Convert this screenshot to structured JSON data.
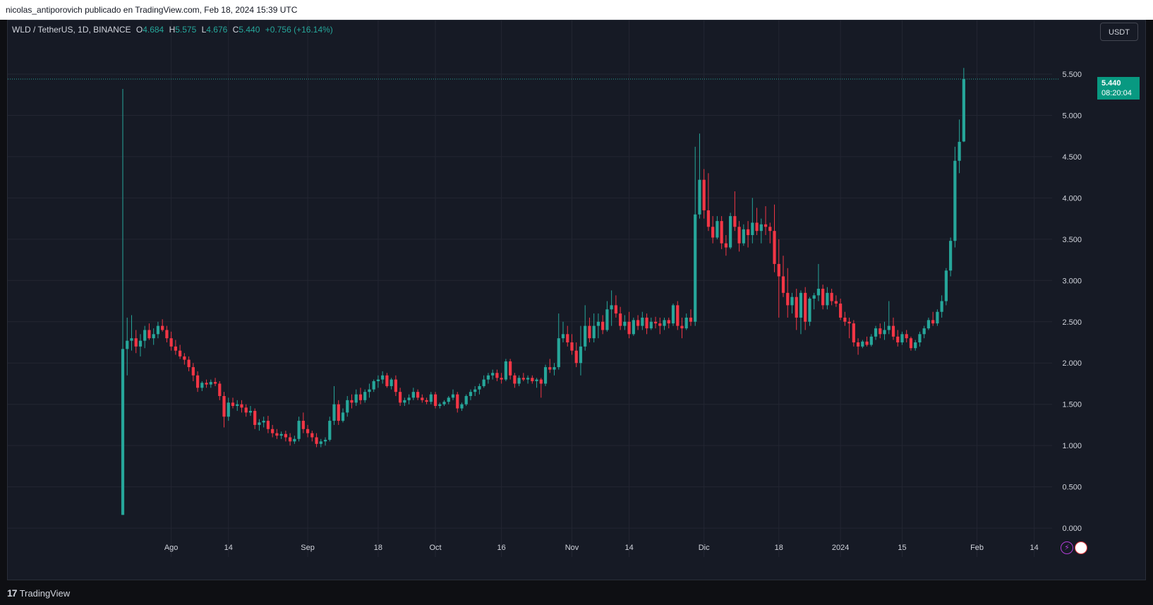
{
  "header": {
    "attribution": "nicolas_antiporovich publicado en TradingView.com, Feb 18, 2024 15:39 UTC"
  },
  "legend": {
    "symbol": "WLD / TetherUS, 1D, BINANCE",
    "o_label": "O",
    "o": "4.684",
    "h_label": "H",
    "h": "5.575",
    "l_label": "L",
    "l": "4.676",
    "c_label": "C",
    "c": "5.440",
    "change": "+0.756 (+16.14%)"
  },
  "currency_button": "USDT",
  "price_tag": {
    "price": "5.440",
    "countdown": "08:20:04"
  },
  "footer": {
    "brand": "TradingView",
    "logo": "17"
  },
  "colors": {
    "up": "#26a69a",
    "down": "#f23645",
    "background": "#161a25",
    "grid": "#232632",
    "text": "#d1d4dc"
  },
  "chart_data": {
    "type": "candlestick",
    "y_ticks": [
      "0.000",
      "0.500",
      "1.000",
      "1.500",
      "2.000",
      "2.500",
      "3.000",
      "3.500",
      "4.000",
      "4.500",
      "5.000",
      "5.500"
    ],
    "ylim": [
      -0.35,
      6.15
    ],
    "x_ticks": [
      {
        "label": "Ago",
        "day": 11
      },
      {
        "label": "14",
        "day": 24
      },
      {
        "label": "Sep",
        "day": 42
      },
      {
        "label": "18",
        "day": 58
      },
      {
        "label": "Oct",
        "day": 71
      },
      {
        "label": "16",
        "day": 86
      },
      {
        "label": "Nov",
        "day": 102
      },
      {
        "label": "14",
        "day": 115
      },
      {
        "label": "Dic",
        "day": 132
      },
      {
        "label": "18",
        "day": 149
      },
      {
        "label": "2024",
        "day": 163
      },
      {
        "label": "15",
        "day": 177
      },
      {
        "label": "Feb",
        "day": 194
      },
      {
        "label": "14",
        "day": 207
      }
    ],
    "first_day": "2023-07-24",
    "last_price": 5.44,
    "candles": [
      [
        0.16,
        5.32,
        0.16,
        2.17
      ],
      [
        2.17,
        2.55,
        1.85,
        2.27
      ],
      [
        2.27,
        2.58,
        2.15,
        2.3
      ],
      [
        2.3,
        2.4,
        2.12,
        2.2
      ],
      [
        2.2,
        2.35,
        2.08,
        2.27
      ],
      [
        2.27,
        2.45,
        2.18,
        2.4
      ],
      [
        2.4,
        2.48,
        2.28,
        2.3
      ],
      [
        2.3,
        2.42,
        2.22,
        2.35
      ],
      [
        2.35,
        2.5,
        2.3,
        2.45
      ],
      [
        2.45,
        2.53,
        2.38,
        2.4
      ],
      [
        2.4,
        2.45,
        2.25,
        2.3
      ],
      [
        2.3,
        2.38,
        2.15,
        2.2
      ],
      [
        2.2,
        2.28,
        2.1,
        2.15
      ],
      [
        2.15,
        2.22,
        2.05,
        2.08
      ],
      [
        2.08,
        2.12,
        1.98,
        2.04
      ],
      [
        2.04,
        2.08,
        1.9,
        1.95
      ],
      [
        1.95,
        2.0,
        1.78,
        1.85
      ],
      [
        1.85,
        1.9,
        1.65,
        1.7
      ],
      [
        1.7,
        1.78,
        1.66,
        1.76
      ],
      [
        1.76,
        1.8,
        1.7,
        1.74
      ],
      [
        1.74,
        1.8,
        1.7,
        1.77
      ],
      [
        1.77,
        1.82,
        1.72,
        1.75
      ],
      [
        1.75,
        1.78,
        1.55,
        1.6
      ],
      [
        1.6,
        1.65,
        1.22,
        1.35
      ],
      [
        1.35,
        1.58,
        1.3,
        1.52
      ],
      [
        1.52,
        1.58,
        1.45,
        1.48
      ],
      [
        1.48,
        1.55,
        1.42,
        1.5
      ],
      [
        1.5,
        1.55,
        1.4,
        1.46
      ],
      [
        1.46,
        1.5,
        1.35,
        1.4
      ],
      [
        1.4,
        1.48,
        1.36,
        1.42
      ],
      [
        1.42,
        1.45,
        1.2,
        1.25
      ],
      [
        1.25,
        1.32,
        1.18,
        1.28
      ],
      [
        1.28,
        1.35,
        1.22,
        1.3
      ],
      [
        1.3,
        1.36,
        1.15,
        1.2
      ],
      [
        1.2,
        1.25,
        1.1,
        1.15
      ],
      [
        1.15,
        1.2,
        1.08,
        1.12
      ],
      [
        1.12,
        1.17,
        1.08,
        1.14
      ],
      [
        1.14,
        1.18,
        1.05,
        1.1
      ],
      [
        1.1,
        1.15,
        1.0,
        1.05
      ],
      [
        1.05,
        1.12,
        1.02,
        1.08
      ],
      [
        1.08,
        1.35,
        1.05,
        1.3
      ],
      [
        1.3,
        1.4,
        1.15,
        1.2
      ],
      [
        1.2,
        1.25,
        1.1,
        1.15
      ],
      [
        1.15,
        1.18,
        1.05,
        1.1
      ],
      [
        1.1,
        1.15,
        0.98,
        1.02
      ],
      [
        1.02,
        1.08,
        0.98,
        1.05
      ],
      [
        1.05,
        1.1,
        1.0,
        1.07
      ],
      [
        1.07,
        1.35,
        1.05,
        1.3
      ],
      [
        1.3,
        1.72,
        1.25,
        1.5
      ],
      [
        1.5,
        1.55,
        1.25,
        1.3
      ],
      [
        1.3,
        1.45,
        1.28,
        1.4
      ],
      [
        1.4,
        1.6,
        1.35,
        1.55
      ],
      [
        1.55,
        1.62,
        1.45,
        1.52
      ],
      [
        1.52,
        1.68,
        1.48,
        1.62
      ],
      [
        1.62,
        1.7,
        1.5,
        1.55
      ],
      [
        1.55,
        1.68,
        1.52,
        1.65
      ],
      [
        1.65,
        1.75,
        1.58,
        1.68
      ],
      [
        1.68,
        1.8,
        1.65,
        1.78
      ],
      [
        1.78,
        1.85,
        1.7,
        1.8
      ],
      [
        1.8,
        1.9,
        1.75,
        1.85
      ],
      [
        1.85,
        1.88,
        1.7,
        1.72
      ],
      [
        1.72,
        1.82,
        1.68,
        1.8
      ],
      [
        1.8,
        1.85,
        1.6,
        1.65
      ],
      [
        1.65,
        1.7,
        1.48,
        1.52
      ],
      [
        1.52,
        1.58,
        1.48,
        1.55
      ],
      [
        1.55,
        1.62,
        1.5,
        1.58
      ],
      [
        1.58,
        1.7,
        1.55,
        1.65
      ],
      [
        1.65,
        1.68,
        1.55,
        1.58
      ],
      [
        1.58,
        1.62,
        1.52,
        1.55
      ],
      [
        1.55,
        1.58,
        1.5,
        1.53
      ],
      [
        1.53,
        1.65,
        1.5,
        1.62
      ],
      [
        1.62,
        1.65,
        1.45,
        1.48
      ],
      [
        1.48,
        1.52,
        1.45,
        1.5
      ],
      [
        1.5,
        1.55,
        1.48,
        1.53
      ],
      [
        1.53,
        1.6,
        1.5,
        1.58
      ],
      [
        1.58,
        1.68,
        1.55,
        1.62
      ],
      [
        1.62,
        1.65,
        1.4,
        1.45
      ],
      [
        1.45,
        1.52,
        1.42,
        1.5
      ],
      [
        1.5,
        1.62,
        1.48,
        1.6
      ],
      [
        1.6,
        1.68,
        1.55,
        1.65
      ],
      [
        1.65,
        1.72,
        1.6,
        1.68
      ],
      [
        1.68,
        1.75,
        1.62,
        1.72
      ],
      [
        1.72,
        1.85,
        1.7,
        1.8
      ],
      [
        1.8,
        1.88,
        1.75,
        1.85
      ],
      [
        1.85,
        1.92,
        1.8,
        1.88
      ],
      [
        1.88,
        1.92,
        1.78,
        1.82
      ],
      [
        1.82,
        1.88,
        1.75,
        1.8
      ],
      [
        1.8,
        2.05,
        1.78,
        2.02
      ],
      [
        2.02,
        2.05,
        1.8,
        1.85
      ],
      [
        1.85,
        1.88,
        1.7,
        1.75
      ],
      [
        1.75,
        1.85,
        1.72,
        1.82
      ],
      [
        1.82,
        1.88,
        1.78,
        1.8
      ],
      [
        1.8,
        1.85,
        1.75,
        1.82
      ],
      [
        1.82,
        1.85,
        1.75,
        1.78
      ],
      [
        1.78,
        1.82,
        1.7,
        1.8
      ],
      [
        1.8,
        1.82,
        1.58,
        1.75
      ],
      [
        1.75,
        1.98,
        1.72,
        1.95
      ],
      [
        1.95,
        2.05,
        1.88,
        1.92
      ],
      [
        1.92,
        2.0,
        1.85,
        1.95
      ],
      [
        1.95,
        2.6,
        1.92,
        2.3
      ],
      [
        2.3,
        2.5,
        2.25,
        2.35
      ],
      [
        2.35,
        2.45,
        2.2,
        2.25
      ],
      [
        2.25,
        2.35,
        2.1,
        2.15
      ],
      [
        2.15,
        2.25,
        1.95,
        2.0
      ],
      [
        2.0,
        2.45,
        1.85,
        2.2
      ],
      [
        2.2,
        2.7,
        2.15,
        2.45
      ],
      [
        2.45,
        2.55,
        2.25,
        2.3
      ],
      [
        2.3,
        2.6,
        2.25,
        2.45
      ],
      [
        2.45,
        2.6,
        2.3,
        2.5
      ],
      [
        2.5,
        2.58,
        2.35,
        2.4
      ],
      [
        2.4,
        2.75,
        2.38,
        2.65
      ],
      [
        2.65,
        2.88,
        2.45,
        2.7
      ],
      [
        2.7,
        2.82,
        2.55,
        2.6
      ],
      [
        2.6,
        2.68,
        2.4,
        2.45
      ],
      [
        2.45,
        2.58,
        2.4,
        2.5
      ],
      [
        2.5,
        2.62,
        2.3,
        2.35
      ],
      [
        2.35,
        2.55,
        2.33,
        2.52
      ],
      [
        2.52,
        2.58,
        2.4,
        2.45
      ],
      [
        2.45,
        2.62,
        2.4,
        2.55
      ],
      [
        2.55,
        2.6,
        2.35,
        2.42
      ],
      [
        2.42,
        2.55,
        2.4,
        2.5
      ],
      [
        2.5,
        2.56,
        2.42,
        2.48
      ],
      [
        2.48,
        2.55,
        2.35,
        2.45
      ],
      [
        2.45,
        2.55,
        2.4,
        2.52
      ],
      [
        2.52,
        2.55,
        2.42,
        2.48
      ],
      [
        2.48,
        2.72,
        2.45,
        2.7
      ],
      [
        2.7,
        2.75,
        2.4,
        2.45
      ],
      [
        2.45,
        2.55,
        2.3,
        2.42
      ],
      [
        2.42,
        2.6,
        2.4,
        2.55
      ],
      [
        2.55,
        2.65,
        2.45,
        2.5
      ],
      [
        2.5,
        4.62,
        2.45,
        3.8
      ],
      [
        3.8,
        4.78,
        3.75,
        4.22
      ],
      [
        4.22,
        4.35,
        3.75,
        3.85
      ],
      [
        3.85,
        4.3,
        3.6,
        3.65
      ],
      [
        3.65,
        3.78,
        3.45,
        3.52
      ],
      [
        3.52,
        3.78,
        3.5,
        3.72
      ],
      [
        3.72,
        3.78,
        3.38,
        3.45
      ],
      [
        3.45,
        3.55,
        3.3,
        3.4
      ],
      [
        3.4,
        3.82,
        3.38,
        3.78
      ],
      [
        3.78,
        4.08,
        3.6,
        3.65
      ],
      [
        3.65,
        3.72,
        3.35,
        3.45
      ],
      [
        3.45,
        3.68,
        3.42,
        3.62
      ],
      [
        3.62,
        3.72,
        3.4,
        3.55
      ],
      [
        3.55,
        4.0,
        3.45,
        3.7
      ],
      [
        3.7,
        3.88,
        3.55,
        3.6
      ],
      [
        3.6,
        3.75,
        3.45,
        3.68
      ],
      [
        3.68,
        3.9,
        3.55,
        3.65
      ],
      [
        3.65,
        3.7,
        3.45,
        3.6
      ],
      [
        3.6,
        3.92,
        3.1,
        3.2
      ],
      [
        3.2,
        3.5,
        2.55,
        3.05
      ],
      [
        3.05,
        3.3,
        2.8,
        2.85
      ],
      [
        2.85,
        3.15,
        2.55,
        2.7
      ],
      [
        2.7,
        2.85,
        2.6,
        2.8
      ],
      [
        2.8,
        2.9,
        2.4,
        2.55
      ],
      [
        2.55,
        2.88,
        2.35,
        2.85
      ],
      [
        2.85,
        2.92,
        2.4,
        2.5
      ],
      [
        2.5,
        2.8,
        2.45,
        2.78
      ],
      [
        2.78,
        2.85,
        2.65,
        2.82
      ],
      [
        2.82,
        3.2,
        2.75,
        2.9
      ],
      [
        2.9,
        2.95,
        2.65,
        2.7
      ],
      [
        2.7,
        2.92,
        2.65,
        2.85
      ],
      [
        2.85,
        2.9,
        2.7,
        2.75
      ],
      [
        2.75,
        2.82,
        2.68,
        2.72
      ],
      [
        2.72,
        2.78,
        2.52,
        2.55
      ],
      [
        2.55,
        2.62,
        2.45,
        2.5
      ],
      [
        2.5,
        2.55,
        2.3,
        2.48
      ],
      [
        2.48,
        2.52,
        2.2,
        2.25
      ],
      [
        2.25,
        2.3,
        2.1,
        2.2
      ],
      [
        2.2,
        2.28,
        2.18,
        2.26
      ],
      [
        2.26,
        2.32,
        2.2,
        2.22
      ],
      [
        2.22,
        2.35,
        2.2,
        2.32
      ],
      [
        2.32,
        2.45,
        2.28,
        2.42
      ],
      [
        2.42,
        2.48,
        2.3,
        2.35
      ],
      [
        2.35,
        2.5,
        2.28,
        2.4
      ],
      [
        2.4,
        2.75,
        2.35,
        2.45
      ],
      [
        2.45,
        2.55,
        2.28,
        2.32
      ],
      [
        2.32,
        2.4,
        2.2,
        2.25
      ],
      [
        2.25,
        2.38,
        2.22,
        2.35
      ],
      [
        2.35,
        2.4,
        2.25,
        2.3
      ],
      [
        2.3,
        2.32,
        2.15,
        2.18
      ],
      [
        2.18,
        2.28,
        2.15,
        2.25
      ],
      [
        2.25,
        2.38,
        2.2,
        2.35
      ],
      [
        2.35,
        2.45,
        2.3,
        2.42
      ],
      [
        2.42,
        2.55,
        2.4,
        2.52
      ],
      [
        2.52,
        2.62,
        2.45,
        2.48
      ],
      [
        2.48,
        2.65,
        2.45,
        2.62
      ],
      [
        2.62,
        2.82,
        2.55,
        2.75
      ],
      [
        2.75,
        3.15,
        2.7,
        3.12
      ],
      [
        3.12,
        3.52,
        3.05,
        3.48
      ],
      [
        3.48,
        4.62,
        3.4,
        4.45
      ],
      [
        4.45,
        4.95,
        4.3,
        4.68
      ],
      [
        4.684,
        5.575,
        4.676,
        5.44
      ]
    ]
  }
}
